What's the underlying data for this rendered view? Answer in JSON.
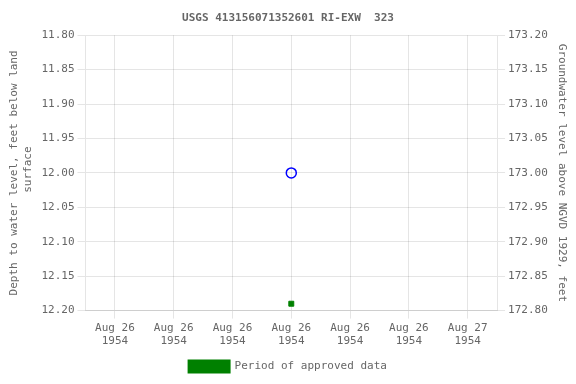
{
  "chart_data": {
    "type": "scatter",
    "title": "USGS 413156071352601 RI-EXW  323",
    "y_label": "Depth to water level, feet below land\n surface",
    "y2_label": "Groundwater level above NGVD 1929, feet",
    "categories": [
      "Aug 26\n1954",
      "Aug 26\n1954",
      "Aug 26\n1954",
      "Aug 26\n1954",
      "Aug 26\n1954",
      "Aug 26\n1954",
      "Aug 27\n1954"
    ],
    "series": [
      {
        "color": "blue",
        "marker": "circle_open",
        "values": [
          null,
          null,
          null,
          12.0,
          null,
          null,
          null
        ]
      },
      {
        "name": "Period of approved data",
        "color": "green",
        "marker": "square",
        "values": [
          null,
          null,
          null,
          12.19,
          null,
          null,
          null
        ]
      }
    ],
    "ylim": [
      12.2,
      11.8
    ],
    "yticks": [
      {
        "value": 11.8,
        "label": "11.80"
      },
      11.85,
      {
        "value": 11.9,
        "label": "11.90"
      },
      11.95,
      {
        "value": 12.0,
        "label": "12.00"
      },
      12.05,
      {
        "value": 12.1,
        "label": "12.10"
      },
      12.15,
      {
        "value": 12.2,
        "label": "12.20"
      }
    ],
    "y2lim": [
      172.8,
      173.2
    ],
    "y2ticks": [
      {
        "value": 172.8,
        "label": "172.80"
      },
      172.85,
      {
        "value": 172.9,
        "label": "172.90"
      },
      172.95,
      {
        "value": 173.0,
        "label": "173.00"
      },
      173.05,
      {
        "value": 173.1,
        "label": "173.10"
      },
      173.15,
      {
        "value": 173.2,
        "label": "173.20"
      }
    ],
    "grid": true,
    "legend": "bottom"
  }
}
